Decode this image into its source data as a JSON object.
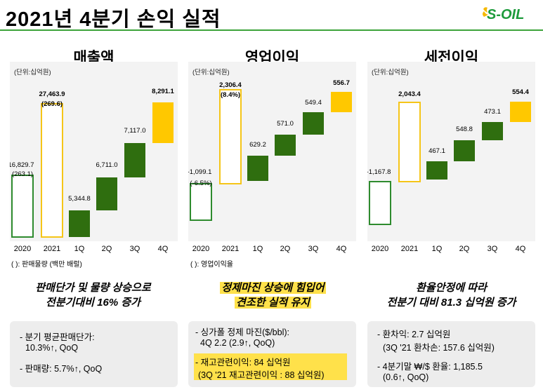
{
  "header": {
    "title": "2021년 4분기 손익 실적",
    "logo_text": "S-OIL"
  },
  "colors": {
    "accent_green": "#3ca33a",
    "dark_green": "#2f6e0f",
    "yellow": "#ffc800",
    "outline_green": "#2e8b2e",
    "outline_yellow": "#f5c518"
  },
  "categories": [
    "2020",
    "2021",
    "1Q",
    "2Q",
    "3Q",
    "4Q"
  ],
  "panels": [
    {
      "title": "매출액",
      "unit": "(단위:십억원)",
      "labels": [
        "16,829.7",
        "27,463.9",
        "5,344.8",
        "6,711.0",
        "7,117.0",
        "8,291.1"
      ],
      "sublabels": [
        "(263.1)",
        "(269.6)"
      ],
      "note": "( ): 판매물량 (백만 배럴)"
    },
    {
      "title": "영업이익",
      "unit": "(단위:십억원)",
      "labels": [
        "-1,099.1",
        "2,306.4",
        "629.2",
        "571.0",
        "549.4",
        "556.7"
      ],
      "sublabels": [
        "(-6.5%)",
        "(8.4%)"
      ],
      "note": "( ): 영업이익율"
    },
    {
      "title": "세전이익",
      "unit": "(단위:십억원)",
      "labels": [
        "-1,167.8",
        "2,043.4",
        "467.1",
        "548.8",
        "473.1",
        "554.4"
      ],
      "sublabels": [],
      "note": ""
    }
  ],
  "summaries": [
    {
      "line1": "판매단가 및 물량 상승으로",
      "line2": "전분기대비 16% 증가"
    },
    {
      "line1": "정제마진 상승에 힘입어",
      "line2": "견조한 실적 유지"
    },
    {
      "line1": "환율안정에 따라",
      "line2": "전분기 대비 81.3 십억원 증가"
    }
  ],
  "details": [
    {
      "a1": "- 분기 평균판매단가:",
      "a2": "10.3%↑, QoQ",
      "b1": "- 판매량: 5.7%↑, QoQ",
      "b2": ""
    },
    {
      "a1": "- 싱가폴 정제 마진($/bbl):",
      "a2": "4Q 2.2 (2.9↑, QoQ)",
      "b1": "- 재고관련이익: 84 십억원",
      "b2": "(3Q '21 재고관련이익 : 88 십억원)"
    },
    {
      "a1": "- 환차익: 2.7 십억원",
      "a2": "(3Q '21 환차손: 157.6 십억원)",
      "b1": "- 4분기말 ₩/$ 환율: 1,185.5",
      "b2": "(0.6↑, QoQ)"
    }
  ]
}
